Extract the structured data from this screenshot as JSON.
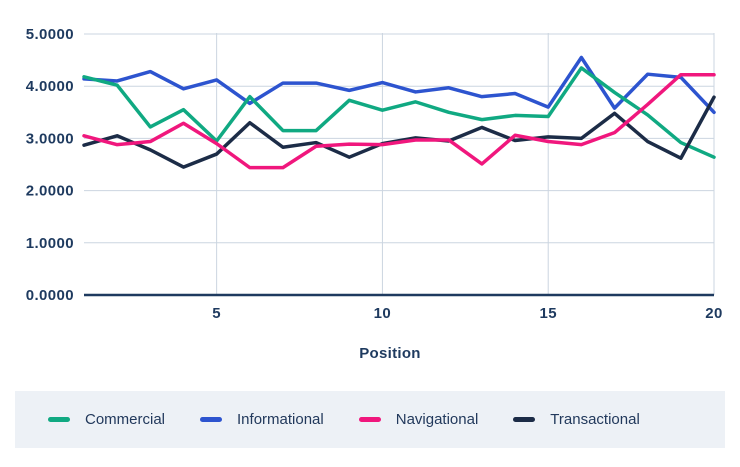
{
  "chart_data": {
    "type": "line",
    "title": "",
    "xlabel": "Position",
    "ylabel": "",
    "xlim": [
      1,
      20
    ],
    "ylim": [
      0,
      5
    ],
    "x": [
      1,
      2,
      3,
      4,
      5,
      6,
      7,
      8,
      9,
      10,
      11,
      12,
      13,
      14,
      15,
      16,
      17,
      18,
      19,
      20
    ],
    "x_ticks": [
      5,
      10,
      15,
      20
    ],
    "y_tick_labels": [
      "0.0000",
      "1.0000",
      "2.0000",
      "3.0000",
      "4.0000",
      "5.0000"
    ],
    "grid": true,
    "legend_position": "bottom",
    "series": [
      {
        "name": "Commercial",
        "color": "#10a982",
        "values": [
          4.18,
          4.02,
          3.22,
          3.55,
          2.95,
          3.8,
          3.15,
          3.15,
          3.73,
          3.54,
          3.7,
          3.5,
          3.36,
          3.44,
          3.42,
          4.35,
          3.88,
          3.45,
          2.92,
          2.64
        ]
      },
      {
        "name": "Informational",
        "color": "#2d54cf",
        "values": [
          4.14,
          4.1,
          4.28,
          3.95,
          4.12,
          3.67,
          4.06,
          4.06,
          3.92,
          4.07,
          3.89,
          3.97,
          3.8,
          3.86,
          3.6,
          4.55,
          3.58,
          4.23,
          4.17,
          3.5
        ]
      },
      {
        "name": "Navigational",
        "color": "#f0177d",
        "values": [
          3.05,
          2.88,
          2.94,
          3.29,
          2.9,
          2.44,
          2.44,
          2.85,
          2.89,
          2.88,
          2.97,
          2.97,
          2.51,
          3.06,
          2.94,
          2.88,
          3.11,
          3.65,
          4.22,
          4.22
        ]
      },
      {
        "name": "Transactional",
        "color": "#1c2c47",
        "values": [
          2.87,
          3.05,
          2.78,
          2.45,
          2.7,
          3.3,
          2.83,
          2.92,
          2.64,
          2.9,
          3.01,
          2.95,
          3.21,
          2.96,
          3.03,
          3.0,
          3.48,
          2.94,
          2.62,
          3.79
        ]
      }
    ]
  },
  "colors": {
    "axis_text": "#1e3a5f",
    "gridline": "#cbd5e0",
    "axis_line": "#1e3a5f",
    "legend_bg": "#edf1f6",
    "background": "#ffffff"
  }
}
